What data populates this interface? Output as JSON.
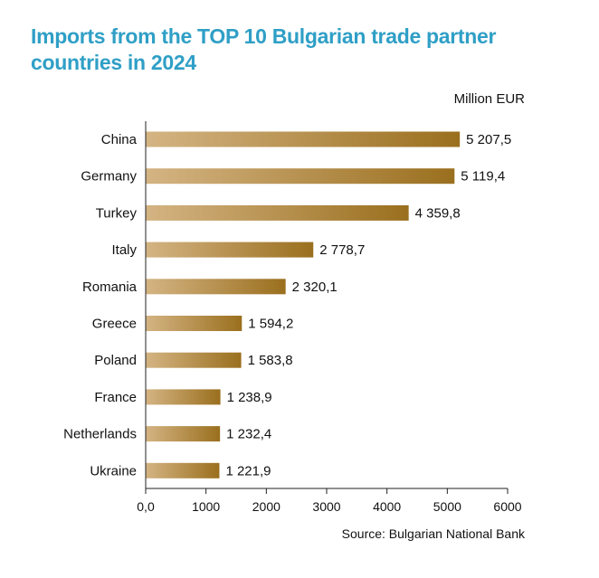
{
  "chart_data": {
    "type": "bar",
    "orientation": "horizontal",
    "title": "Imports from the TOP 10 Bulgarian trade partner countries in 2024",
    "unit_label": "Million EUR",
    "source": "Source: Bulgarian National Bank",
    "categories": [
      "China",
      "Germany",
      "Turkey",
      "Italy",
      "Romania",
      "Greece",
      "Poland",
      "France",
      "Netherlands",
      "Ukraine"
    ],
    "values": [
      5207.5,
      5119.4,
      4359.8,
      2778.7,
      2320.1,
      1594.2,
      1583.8,
      1238.9,
      1232.4,
      1221.9
    ],
    "value_labels": [
      "5 207,5",
      "5 119,4",
      "4 359,8",
      "2 778,7",
      "2 320,1",
      "1 594,2",
      "1 583,8",
      "1 238,9",
      "1 232,4",
      "1 221,9"
    ],
    "xlim": [
      0,
      6000
    ],
    "xticks": [
      0,
      1000,
      2000,
      3000,
      4000,
      5000,
      6000
    ],
    "xtick_labels": [
      "0,0",
      "1000",
      "2000",
      "3000",
      "4000",
      "5000",
      "6000"
    ],
    "grid": false,
    "legend": "none",
    "colors": {
      "bar_light": "#d4b483",
      "bar_dark": "#9a6f1e",
      "title": "#2f9fc6"
    }
  }
}
